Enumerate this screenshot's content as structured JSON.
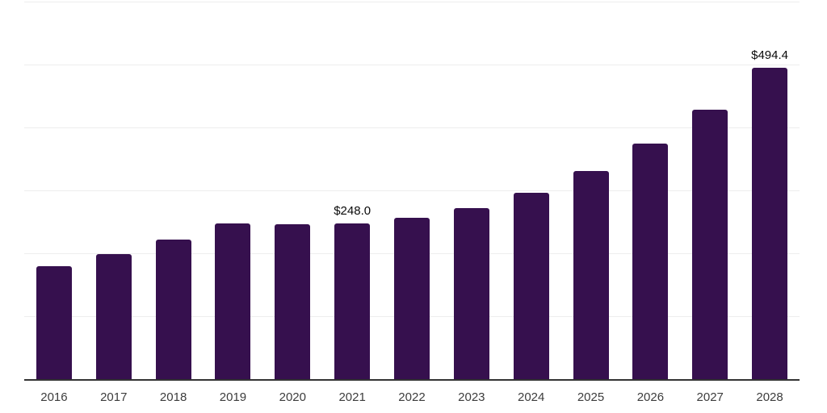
{
  "chart_data": {
    "type": "bar",
    "title": "",
    "xlabel": "",
    "ylabel": "",
    "categories": [
      "2016",
      "2017",
      "2018",
      "2019",
      "2020",
      "2021",
      "2022",
      "2023",
      "2024",
      "2025",
      "2026",
      "2027",
      "2028"
    ],
    "values": [
      178.9,
      198.7,
      221.8,
      246.9,
      246.1,
      248.0,
      256.0,
      272.0,
      296.1,
      330.8,
      375.0,
      428.2,
      494.4
    ],
    "data_labels": {
      "2021": "$248.0",
      "2028": "$494.4"
    },
    "ylim": [
      0,
      600
    ],
    "gridline_step": 100,
    "grid": "horizontal",
    "legend": "none",
    "colors": {
      "bar": "#36104E",
      "axis_line": "#333333",
      "gridline": "#ededed",
      "value_label": "#0a0a0a",
      "tick_label": "#3c3c3c"
    }
  }
}
